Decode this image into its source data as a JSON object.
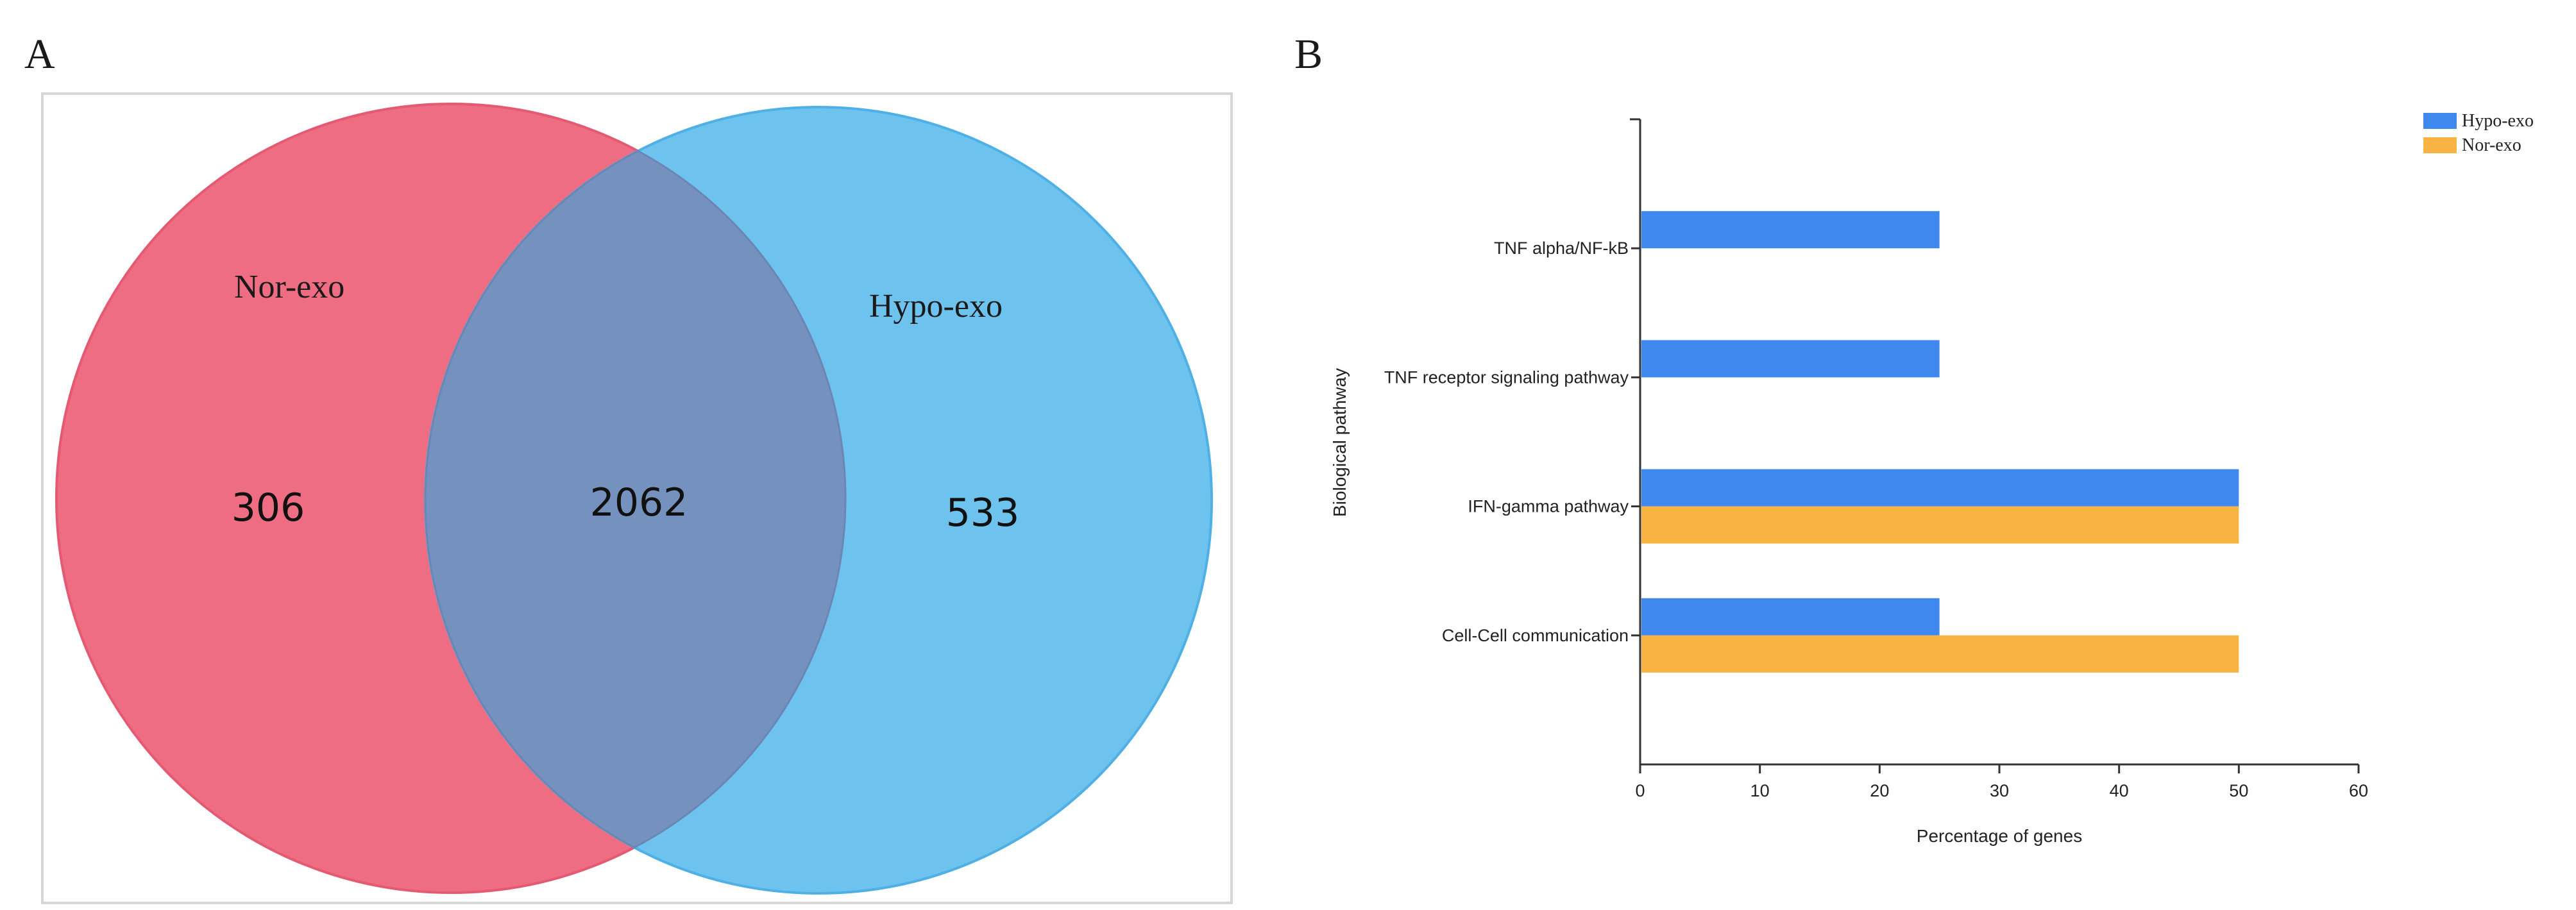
{
  "panels": {
    "left_label": "A",
    "right_label": "B"
  },
  "colors": {
    "nor_exo": "#EF6D82",
    "hypo_exo": "#6EC3EE",
    "overlap": "#7592BE",
    "bar_hypo": "#3F88EE",
    "bar_nor": "#F8B342"
  },
  "chart_data": [
    {
      "type": "venn",
      "sets": [
        {
          "name": "Nor-exo",
          "only": 306
        },
        {
          "name": "Hypo-exo",
          "only": 533
        }
      ],
      "intersection": 2062
    },
    {
      "type": "bar",
      "orientation": "horizontal",
      "categories": [
        "TNF alpha/NF-kB",
        "TNF receptor signaling pathway",
        "IFN-gamma pathway",
        "Cell-Cell communication"
      ],
      "series": [
        {
          "name": "Hypo-exo",
          "color": "#3F88EE",
          "values": [
            25,
            25,
            50,
            25
          ]
        },
        {
          "name": "Nor-exo",
          "color": "#F8B342",
          "values": [
            null,
            null,
            50,
            50
          ]
        }
      ],
      "xlabel": "Percentage of genes",
      "ylabel": "Biological pathway",
      "xlim": [
        0,
        60
      ],
      "xticks": [
        0,
        10,
        20,
        30,
        40,
        50,
        60
      ],
      "legend_position": "top-right",
      "grid": false
    }
  ]
}
